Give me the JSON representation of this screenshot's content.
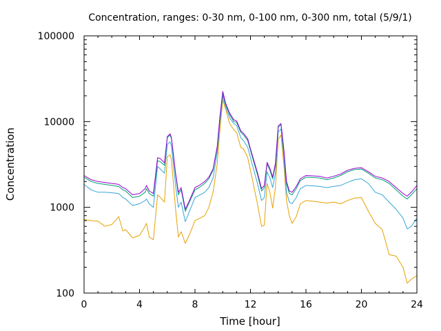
{
  "chart_data": {
    "type": "line",
    "title": "Concentration, ranges: 0-30 nm, 0-100 nm, 0-300 nm, total (5/9/1)",
    "xlabel": "Time [hour]",
    "ylabel": "Concentration",
    "xlim": [
      0,
      24
    ],
    "ylim": [
      100,
      100000
    ],
    "yscale": "log",
    "xticks": [
      "0",
      "4",
      "8",
      "12",
      "16",
      "20",
      "24"
    ],
    "yticks": [
      "100",
      "1000",
      "10000",
      "100000"
    ],
    "grid": false,
    "legend": "none",
    "x": [
      0,
      0.5,
      1,
      1.5,
      2,
      2.5,
      2.8,
      3,
      3.5,
      4,
      4.4,
      4.5,
      4.7,
      5,
      5.3,
      5.5,
      5.8,
      6,
      6.2,
      6.3,
      6.6,
      6.8,
      7,
      7.3,
      7.6,
      8,
      8.3,
      8.7,
      9,
      9.3,
      9.6,
      9.8,
      10,
      10.2,
      10.5,
      10.8,
      11,
      11.3,
      11.5,
      11.8,
      12,
      12.5,
      12.8,
      13,
      13.2,
      13.4,
      13.6,
      13.8,
      14,
      14.2,
      14.4,
      14.6,
      14.8,
      15,
      15.3,
      15.6,
      16,
      16.5,
      17,
      17.5,
      18,
      18.5,
      19,
      19.5,
      20,
      20.5,
      21,
      21.5,
      22,
      22.5,
      23,
      23.3,
      23.6,
      24
    ],
    "series": [
      {
        "color": "#e6a000",
        "values": [
          720,
          700,
          690,
          600,
          630,
          780,
          530,
          550,
          440,
          470,
          600,
          650,
          450,
          420,
          1400,
          1300,
          1150,
          3900,
          4100,
          3600,
          950,
          450,
          520,
          380,
          480,
          700,
          740,
          800,
          1000,
          1500,
          3200,
          8000,
          18000,
          14000,
          9500,
          8000,
          7500,
          5000,
          4800,
          3800,
          2700,
          1100,
          600,
          620,
          1900,
          1500,
          980,
          1700,
          6200,
          7000,
          3200,
          1200,
          800,
          650,
          780,
          1100,
          1200,
          1180,
          1150,
          1120,
          1150,
          1100,
          1200,
          1280,
          1300,
          900,
          650,
          550,
          280,
          270,
          200,
          130,
          145,
          160
        ]
      },
      {
        "color": "#35a5d8",
        "values": [
          1850,
          1600,
          1500,
          1500,
          1480,
          1450,
          1300,
          1250,
          1050,
          1100,
          1200,
          1250,
          1100,
          1000,
          3000,
          2800,
          2500,
          5400,
          5800,
          5200,
          1800,
          1000,
          1150,
          680,
          900,
          1300,
          1380,
          1500,
          1700,
          2200,
          4300,
          10000,
          20000,
          15000,
          11000,
          9500,
          9000,
          6500,
          6000,
          5000,
          3800,
          1900,
          1200,
          1300,
          2600,
          2200,
          1700,
          2500,
          7600,
          8200,
          4000,
          1500,
          1150,
          1100,
          1300,
          1650,
          1800,
          1780,
          1750,
          1700,
          1750,
          1800,
          1950,
          2100,
          2150,
          1900,
          1500,
          1400,
          1150,
          950,
          750,
          560,
          600,
          750
        ]
      },
      {
        "color": "#009e73",
        "values": [
          2250,
          2000,
          1900,
          1850,
          1800,
          1750,
          1600,
          1550,
          1300,
          1350,
          1500,
          1650,
          1450,
          1350,
          3500,
          3400,
          3100,
          6500,
          7000,
          6300,
          2400,
          1400,
          1600,
          900,
          1150,
          1600,
          1700,
          1900,
          2150,
          2700,
          4900,
          11000,
          21500,
          16000,
          12000,
          10000,
          9800,
          7500,
          7000,
          6000,
          4600,
          2400,
          1550,
          1700,
          3200,
          2700,
          2150,
          3100,
          8600,
          9200,
          4700,
          1900,
          1450,
          1400,
          1650,
          2050,
          2250,
          2230,
          2200,
          2100,
          2200,
          2350,
          2600,
          2750,
          2800,
          2500,
          2200,
          2100,
          1900,
          1600,
          1350,
          1250,
          1400,
          1650
        ]
      },
      {
        "color": "#9400d3",
        "values": [
          2350,
          2100,
          2000,
          1950,
          1900,
          1850,
          1700,
          1650,
          1400,
          1450,
          1650,
          1800,
          1550,
          1450,
          3800,
          3700,
          3300,
          6700,
          7200,
          6500,
          2500,
          1500,
          1700,
          950,
          1200,
          1700,
          1800,
          2000,
          2250,
          2800,
          5100,
          11500,
          22500,
          16500,
          12500,
          10500,
          10200,
          7800,
          7300,
          6300,
          4800,
          2550,
          1650,
          1800,
          3350,
          2850,
          2250,
          3250,
          8900,
          9500,
          4850,
          2000,
          1550,
          1500,
          1750,
          2150,
          2350,
          2330,
          2300,
          2200,
          2300,
          2450,
          2700,
          2850,
          2900,
          2600,
          2300,
          2200,
          2000,
          1700,
          1450,
          1350,
          1500,
          1800
        ]
      }
    ]
  }
}
